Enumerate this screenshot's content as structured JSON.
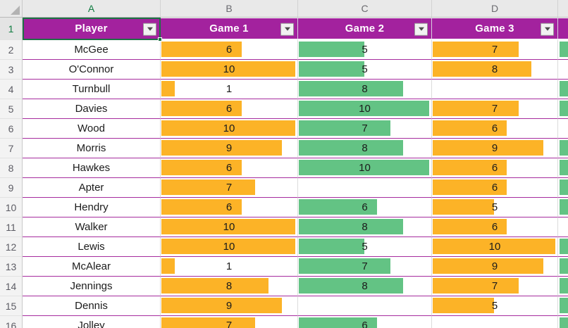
{
  "grid": {
    "column_letters": [
      "A",
      "B",
      "C",
      "D"
    ],
    "active_column": "A",
    "active_row": "1",
    "first_row_number": "1"
  },
  "table": {
    "header": {
      "player": "Player",
      "game1": "Game 1",
      "game2": "Game 2",
      "game3": "Game 3"
    },
    "bar_max": 10,
    "rows": [
      {
        "row": "2",
        "player": "McGee",
        "game1": 6,
        "game2": 5,
        "game3": 7,
        "extra_bar": true
      },
      {
        "row": "3",
        "player": "O'Connor",
        "game1": 10,
        "game2": 5,
        "game3": 8,
        "extra_bar": false
      },
      {
        "row": "4",
        "player": "Turnbull",
        "game1": 1,
        "game2": 8,
        "game3": null,
        "extra_bar": true
      },
      {
        "row": "5",
        "player": "Davies",
        "game1": 6,
        "game2": 10,
        "game3": 7,
        "extra_bar": true
      },
      {
        "row": "6",
        "player": "Wood",
        "game1": 10,
        "game2": 7,
        "game3": 6,
        "extra_bar": false
      },
      {
        "row": "7",
        "player": "Morris",
        "game1": 9,
        "game2": 8,
        "game3": 9,
        "extra_bar": true
      },
      {
        "row": "8",
        "player": "Hawkes",
        "game1": 6,
        "game2": 10,
        "game3": 6,
        "extra_bar": true
      },
      {
        "row": "9",
        "player": "Apter",
        "game1": 7,
        "game2": null,
        "game3": 6,
        "extra_bar": true
      },
      {
        "row": "10",
        "player": "Hendry",
        "game1": 6,
        "game2": 6,
        "game3": 5,
        "extra_bar": true
      },
      {
        "row": "11",
        "player": "Walker",
        "game1": 10,
        "game2": 8,
        "game3": 6,
        "extra_bar": false
      },
      {
        "row": "12",
        "player": "Lewis",
        "game1": 10,
        "game2": 5,
        "game3": 10,
        "extra_bar": true
      },
      {
        "row": "13",
        "player": "McAlear",
        "game1": 1,
        "game2": 7,
        "game3": 9,
        "extra_bar": true
      },
      {
        "row": "14",
        "player": "Jennings",
        "game1": 8,
        "game2": 8,
        "game3": 7,
        "extra_bar": true
      },
      {
        "row": "15",
        "player": "Dennis",
        "game1": 9,
        "game2": null,
        "game3": 5,
        "extra_bar": true
      },
      {
        "row": "16",
        "player": "Jolley",
        "game1": 7,
        "game2": 6,
        "game3": null,
        "extra_bar": true
      }
    ]
  },
  "colors": {
    "header_purple": "#A3229E",
    "row_border": "#A62C9E",
    "bar_orange": "#FCB327",
    "bar_green": "#63C384",
    "selection_green": "#1E7145",
    "band_bg": "#E9E9E9",
    "band_text": "#6B6B70",
    "active_header_text": "#107C41",
    "gridline": "#DCDCDC"
  }
}
